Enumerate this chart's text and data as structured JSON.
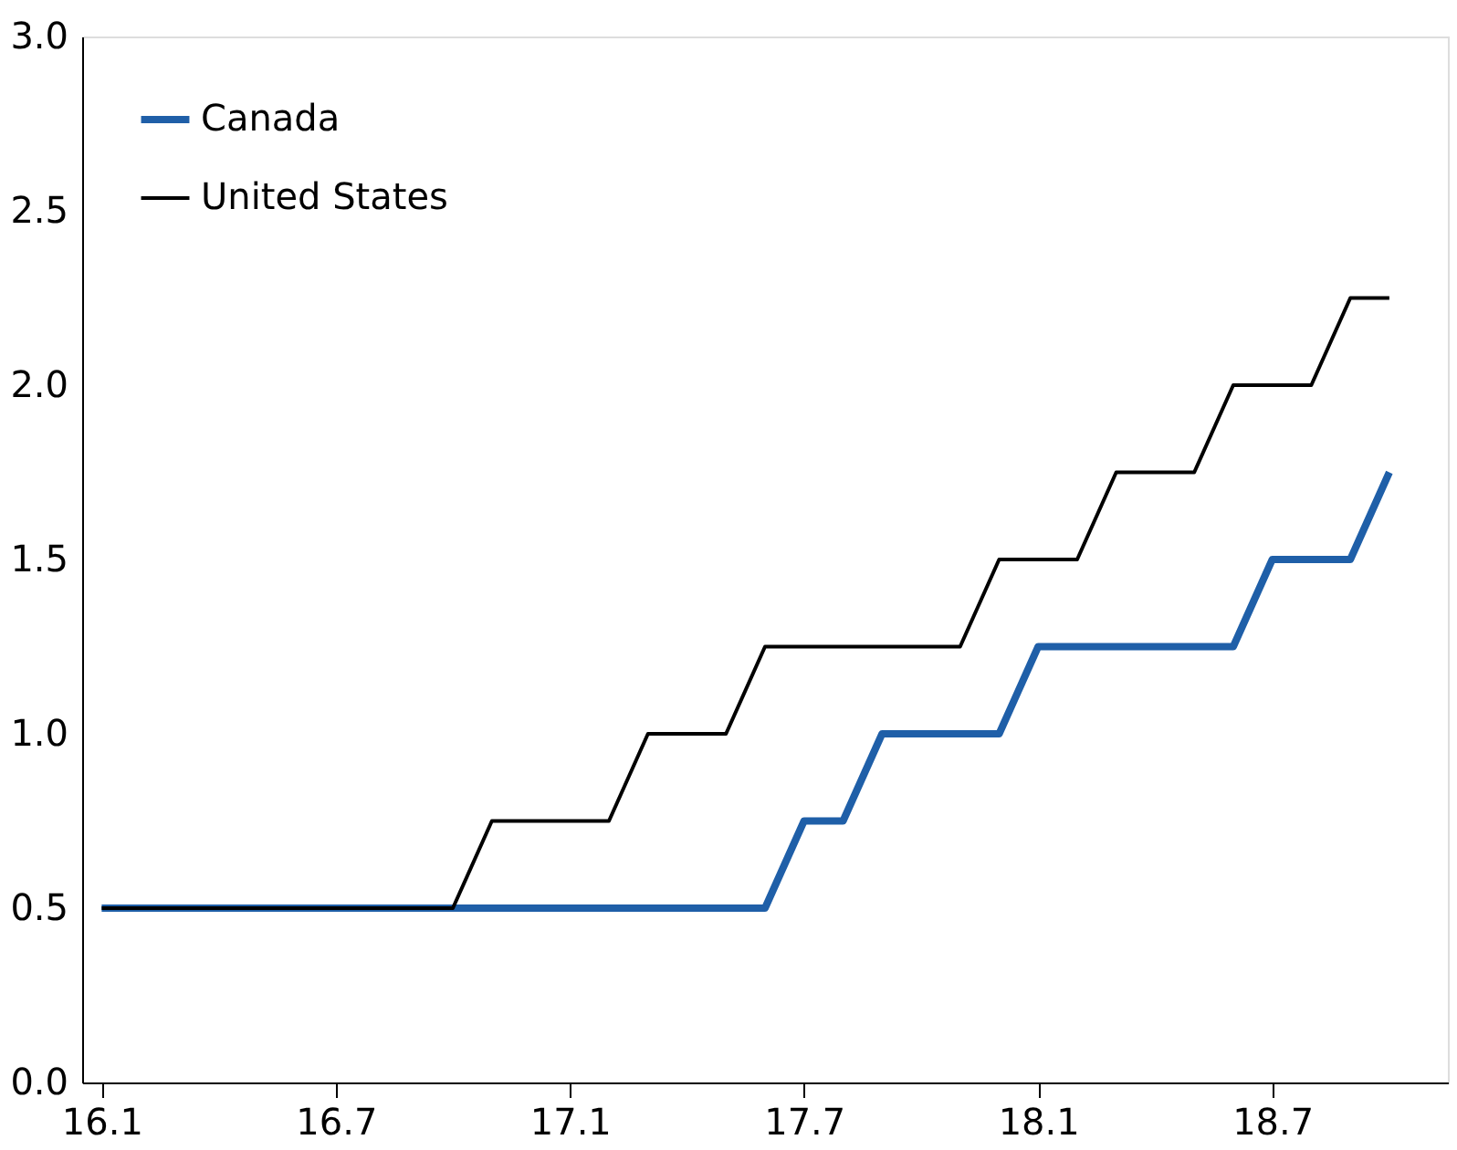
{
  "chart_data": {
    "type": "line",
    "categories": [
      "16.1",
      null,
      null,
      null,
      null,
      null,
      "16.7",
      null,
      null,
      null,
      null,
      null,
      "17.1",
      null,
      null,
      null,
      null,
      null,
      "17.7",
      null,
      null,
      null,
      null,
      null,
      "18.1",
      null,
      null,
      null,
      null,
      null,
      "18.7",
      null,
      null,
      null
    ],
    "series": [
      {
        "name": "Canada",
        "color": "#1f5fa8",
        "values": [
          0.5,
          0.5,
          0.5,
          0.5,
          0.5,
          0.5,
          0.5,
          0.5,
          0.5,
          0.5,
          0.5,
          0.5,
          0.5,
          0.5,
          0.5,
          0.5,
          0.5,
          0.5,
          0.75,
          0.75,
          1.0,
          1.0,
          1.0,
          1.0,
          1.25,
          1.25,
          1.25,
          1.25,
          1.25,
          1.25,
          1.5,
          1.5,
          1.5,
          1.75
        ]
      },
      {
        "name": "United States",
        "color": "#000000",
        "values": [
          0.5,
          0.5,
          0.5,
          0.5,
          0.5,
          0.5,
          0.5,
          0.5,
          0.5,
          0.5,
          0.75,
          0.75,
          0.75,
          0.75,
          1.0,
          1.0,
          1.0,
          1.25,
          1.25,
          1.25,
          1.25,
          1.25,
          1.25,
          1.5,
          1.5,
          1.5,
          1.75,
          1.75,
          1.75,
          2.0,
          2.0,
          2.0,
          2.25,
          2.25
        ]
      }
    ],
    "ylim": [
      0,
      3
    ],
    "yticks": [
      {
        "value": 0,
        "label": "0.0"
      },
      0.5,
      {
        "value": 1,
        "label": "1.0"
      },
      1.5,
      {
        "value": 2,
        "label": "2.0"
      },
      2.5,
      {
        "value": 3,
        "label": "3.0"
      }
    ],
    "grid": false,
    "legend": "top left",
    "marker": "none",
    "line_style": "solid"
  }
}
